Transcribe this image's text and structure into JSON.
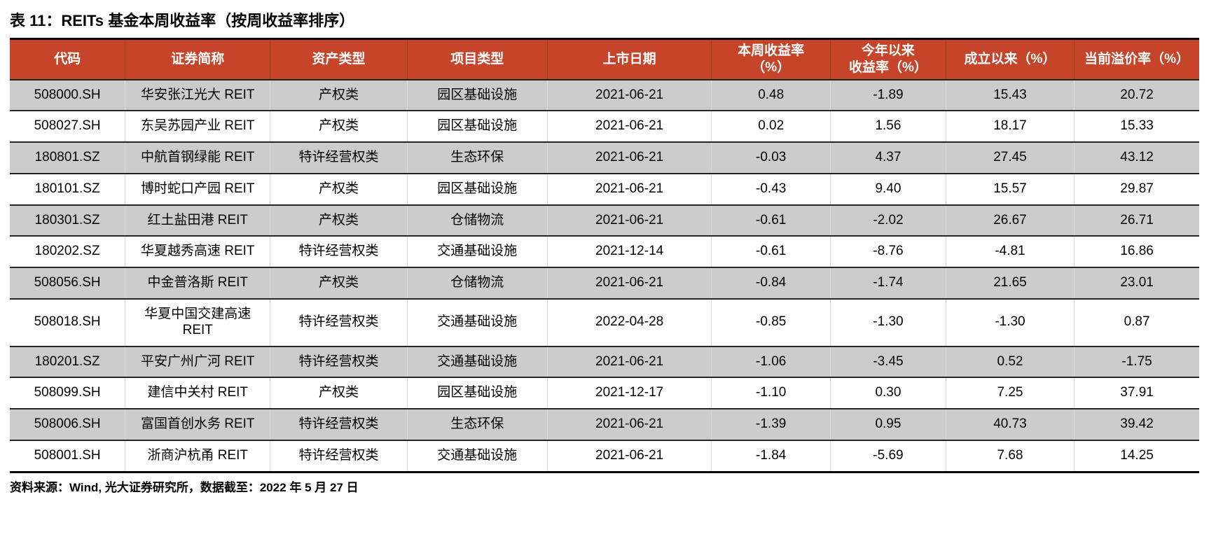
{
  "page": {
    "title": "表 11：REITs 基金本周收益率（按周收益率排序）",
    "source_note": "资料来源：Wind, 光大证券研究所，数据截至：2022 年 5 月 27 日"
  },
  "colors": {
    "header_bg": "#C6452A",
    "header_text": "#FFFFFF",
    "stripe_bg": "#CCCCCC",
    "row_border": "#262626",
    "table_frame": "#000000"
  },
  "table": {
    "columns": [
      {
        "label": "代码",
        "width": "9.7%"
      },
      {
        "label": "证券简称",
        "width": "12.2%"
      },
      {
        "label": "资产类型",
        "width": "11.5%"
      },
      {
        "label": "项目类型",
        "width": "11.8%"
      },
      {
        "label": "上市日期",
        "width": "13.8%"
      },
      {
        "label": [
          "本周收益率",
          "（%）"
        ],
        "width": "10.0%"
      },
      {
        "label": [
          "今年以来",
          "收益率（%）"
        ],
        "width": "9.7%"
      },
      {
        "label": "成立以来（%）",
        "width": "10.8%"
      },
      {
        "label": "当前溢价率（%）",
        "width": "10.5%"
      }
    ],
    "rows": [
      [
        "508000.SH",
        "华安张江光大 REIT",
        "产权类",
        "园区基础设施",
        "2021-06-21",
        "0.48",
        "-1.89",
        "15.43",
        "20.72"
      ],
      [
        "508027.SH",
        "东吴苏园产业 REIT",
        "产权类",
        "园区基础设施",
        "2021-06-21",
        "0.02",
        "1.56",
        "18.17",
        "15.33"
      ],
      [
        "180801.SZ",
        "中航首钢绿能 REIT",
        "特许经营权类",
        "生态环保",
        "2021-06-21",
        "-0.03",
        "4.37",
        "27.45",
        "43.12"
      ],
      [
        "180101.SZ",
        "博时蛇口产园 REIT",
        "产权类",
        "园区基础设施",
        "2021-06-21",
        "-0.43",
        "9.40",
        "15.57",
        "29.87"
      ],
      [
        "180301.SZ",
        "红土盐田港 REIT",
        "产权类",
        "仓储物流",
        "2021-06-21",
        "-0.61",
        "-2.02",
        "26.67",
        "26.71"
      ],
      [
        "180202.SZ",
        "华夏越秀高速 REIT",
        "特许经营权类",
        "交通基础设施",
        "2021-12-14",
        "-0.61",
        "-8.76",
        "-4.81",
        "16.86"
      ],
      [
        "508056.SH",
        "中金普洛斯 REIT",
        "产权类",
        "仓储物流",
        "2021-06-21",
        "-0.84",
        "-1.74",
        "21.65",
        "23.01"
      ],
      [
        "508018.SH",
        "华夏中国交建高速 REIT",
        "特许经营权类",
        "交通基础设施",
        "2022-04-28",
        "-0.85",
        "-1.30",
        "-1.30",
        "0.87"
      ],
      [
        "180201.SZ",
        "平安广州广河 REIT",
        "特许经营权类",
        "交通基础设施",
        "2021-06-21",
        "-1.06",
        "-3.45",
        "0.52",
        "-1.75"
      ],
      [
        "508099.SH",
        "建信中关村 REIT",
        "产权类",
        "园区基础设施",
        "2021-12-17",
        "-1.10",
        "0.30",
        "7.25",
        "37.91"
      ],
      [
        "508006.SH",
        "富国首创水务 REIT",
        "特许经营权类",
        "生态环保",
        "2021-06-21",
        "-1.39",
        "0.95",
        "40.73",
        "39.42"
      ],
      [
        "508001.SH",
        "浙商沪杭甬 REIT",
        "特许经营权类",
        "交通基础设施",
        "2021-06-21",
        "-1.84",
        "-5.69",
        "7.68",
        "14.25"
      ]
    ]
  }
}
